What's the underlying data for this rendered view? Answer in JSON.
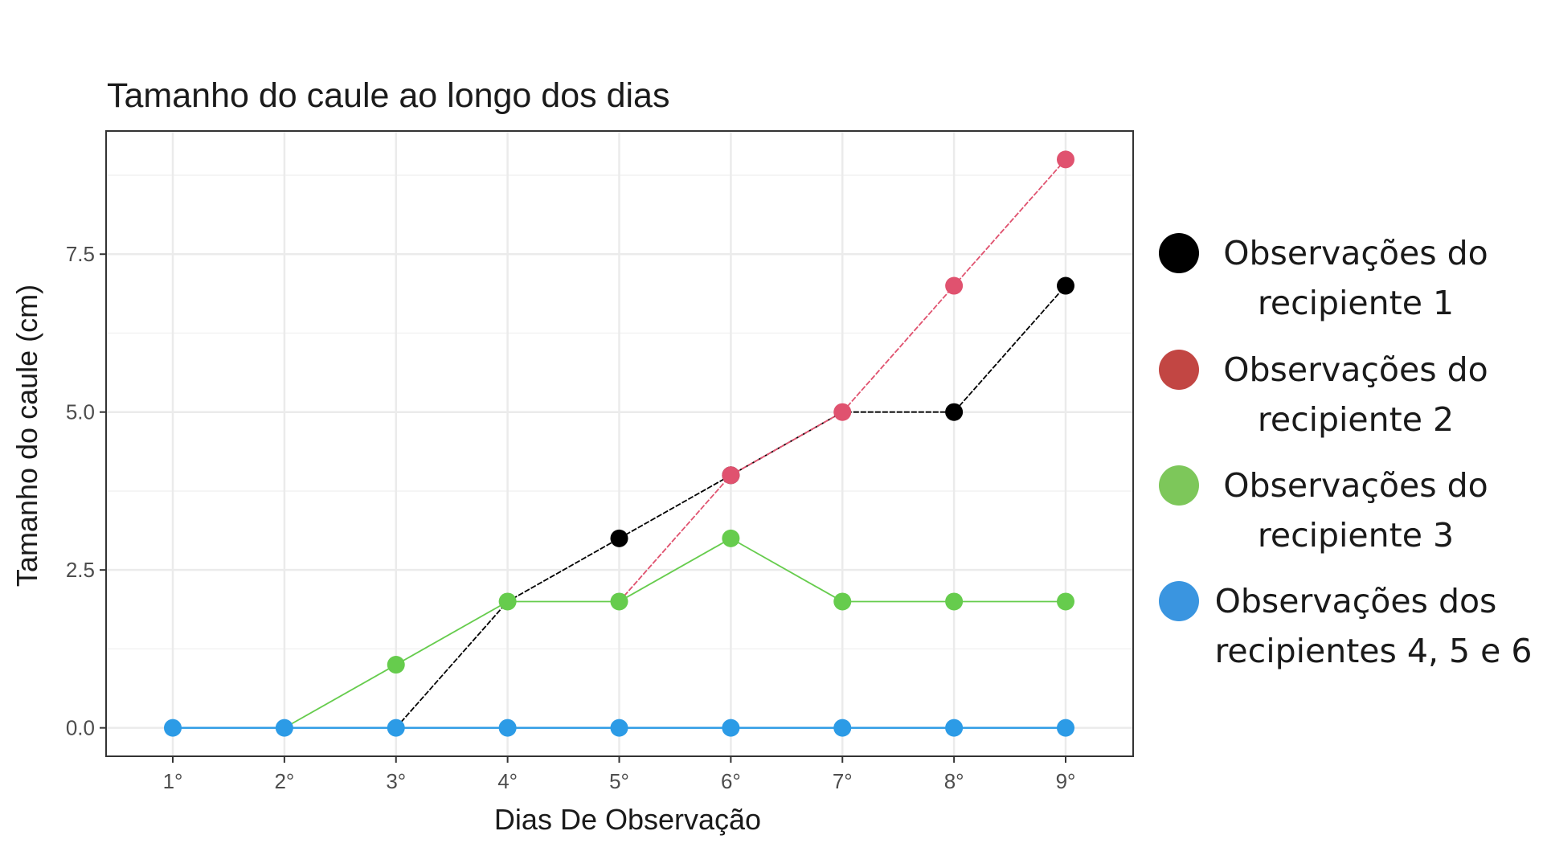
{
  "chart_data": {
    "type": "line",
    "title": "Tamanho do caule ao longo dos dias",
    "xlabel": "Dias De Observação",
    "ylabel": "Tamanho do caule (cm)",
    "categories": [
      "1°",
      "2°",
      "3°",
      "4°",
      "5°",
      "6°",
      "7°",
      "8°",
      "9°"
    ],
    "y_ticks": [
      "0.0",
      "2.5",
      "5.0",
      "7.5"
    ],
    "y_tick_values": [
      0,
      2.5,
      5,
      7.5
    ],
    "ylim": [
      -0.45,
      9.45
    ],
    "grid": true,
    "legend_position": "right",
    "series": [
      {
        "color": "#000000",
        "legend_color": "#000000",
        "values": [
          null,
          null,
          0,
          2,
          3,
          4,
          5,
          5,
          7
        ],
        "marker_days": [
          5,
          6,
          8,
          9
        ],
        "legend": [
          "Observações do",
          "recipiente 1"
        ]
      },
      {
        "color": "#e0526f",
        "legend_color": "#c24643",
        "values": [
          null,
          null,
          null,
          null,
          2,
          4,
          5,
          7,
          9
        ],
        "marker_days": [
          6,
          7,
          8,
          9
        ],
        "legend": [
          "Observações do",
          "recipiente 2"
        ]
      },
      {
        "color": "#66cc4d",
        "legend_color": "#7dc75a",
        "values": [
          null,
          0,
          1,
          2,
          2,
          3,
          2,
          2,
          2
        ],
        "marker_days": [
          3,
          4,
          5,
          6,
          7,
          8,
          9
        ],
        "legend": [
          "Observações do",
          "recipiente 3"
        ]
      },
      {
        "color": "#2c9be6",
        "legend_color": "#3a95e0",
        "values": [
          0,
          0,
          0,
          0,
          0,
          0,
          0,
          0,
          0
        ],
        "marker_days": [
          1,
          2,
          3,
          4,
          5,
          6,
          7,
          8,
          9
        ],
        "legend": [
          "Observações dos",
          "recipientes 4, 5 e 6"
        ]
      }
    ]
  }
}
